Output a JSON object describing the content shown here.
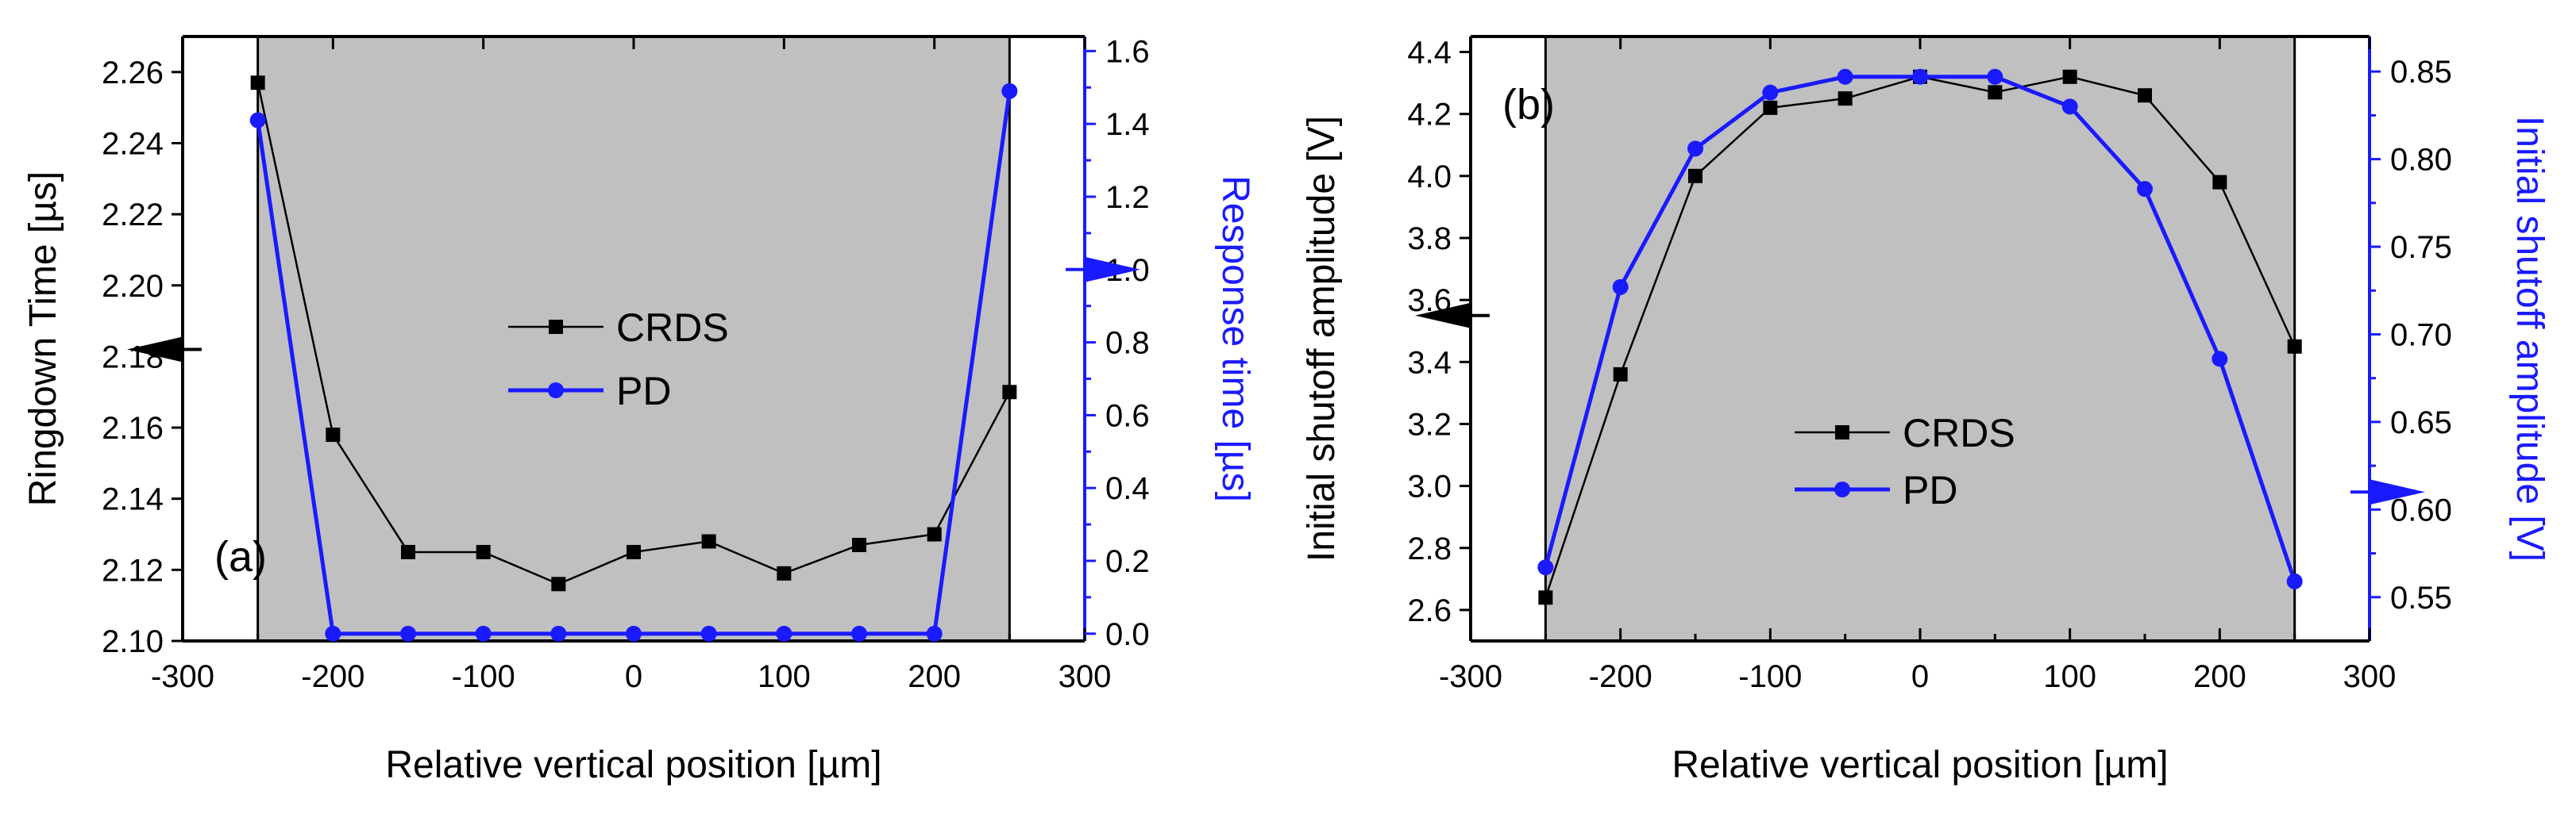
{
  "colors": {
    "shade": "#c0c0c0",
    "crds": "#000000",
    "pd": "#1a1aff",
    "axis_black": "#000000",
    "axis_blue": "#1a1aff"
  },
  "chart_data": [
    {
      "type": "line",
      "panel_label": "(a)",
      "xlabel": "Relative vertical position [µm]",
      "ylabel": "Ringdown Time [µs]",
      "y2label": "Response time [µs]",
      "xlim": [
        -300,
        300
      ],
      "ylim": [
        2.1,
        2.27
      ],
      "y2lim": [
        -0.02,
        1.64
      ],
      "xticks": [
        -300,
        -200,
        -100,
        0,
        100,
        200,
        300
      ],
      "xtick_labels": [
        "-300",
        "-200",
        "-100",
        "0",
        "100",
        "200",
        "300"
      ],
      "yticks": [
        2.1,
        2.12,
        2.14,
        2.16,
        2.18,
        2.2,
        2.22,
        2.24,
        2.26
      ],
      "ytick_labels": [
        "2.10",
        "2.12",
        "2.14",
        "2.16",
        "2.18",
        "2.20",
        "2.22",
        "2.24",
        "2.26"
      ],
      "y2ticks": [
        0.0,
        0.2,
        0.4,
        0.6,
        0.8,
        1.0,
        1.2,
        1.4,
        1.6
      ],
      "y2tick_labels": [
        "0.0",
        "0.2",
        "0.4",
        "0.6",
        "0.8",
        "1.0",
        "1.2",
        "1.4",
        "1.6"
      ],
      "shaded_region": [
        -250,
        250
      ],
      "x": [
        -250,
        -200,
        -150,
        -100,
        -50,
        0,
        50,
        100,
        150,
        200,
        250
      ],
      "series": [
        {
          "name": "CRDS",
          "axis": "left",
          "marker": "square",
          "values": [
            2.257,
            2.158,
            2.125,
            2.125,
            2.116,
            2.125,
            2.128,
            2.119,
            2.127,
            2.13,
            2.17
          ]
        },
        {
          "name": "PD",
          "axis": "right",
          "marker": "circle",
          "values": [
            1.41,
            0.0,
            0.0,
            0.0,
            0.0,
            0.0,
            0.0,
            0.0,
            0.0,
            0.0,
            1.49
          ]
        }
      ],
      "legend": [
        "CRDS",
        "PD"
      ],
      "legend_position": "center",
      "arrows": [
        {
          "points_to": "left",
          "at_y": 2.182
        },
        {
          "points_to": "right",
          "at_y2": 1.0
        }
      ]
    },
    {
      "type": "line",
      "panel_label": "(b)",
      "xlabel": "Relative vertical position [µm]",
      "ylabel": "Initial shutoff amplitude [V]",
      "y2label": "Initial shutoff amplitude [V]",
      "xlim": [
        -300,
        300
      ],
      "ylim": [
        2.5,
        4.45
      ],
      "y2lim": [
        0.525,
        0.87
      ],
      "xticks": [
        -300,
        -200,
        -100,
        0,
        100,
        200,
        300
      ],
      "xtick_labels": [
        "-300",
        "-200",
        "-100",
        "0",
        "100",
        "200",
        "300"
      ],
      "yticks": [
        2.6,
        2.8,
        3.0,
        3.2,
        3.4,
        3.6,
        3.8,
        4.0,
        4.2,
        4.4
      ],
      "ytick_labels": [
        "2.6",
        "2.8",
        "3.0",
        "3.2",
        "3.4",
        "3.6",
        "3.8",
        "4.0",
        "4.2",
        "4.4"
      ],
      "y2ticks": [
        0.55,
        0.6,
        0.65,
        0.7,
        0.75,
        0.8,
        0.85
      ],
      "y2tick_labels": [
        "0.55",
        "0.60",
        "0.65",
        "0.70",
        "0.75",
        "0.80",
        "0.85"
      ],
      "shaded_region": [
        -250,
        250
      ],
      "x": [
        -250,
        -200,
        -150,
        -100,
        -50,
        0,
        50,
        100,
        150,
        200,
        250
      ],
      "series": [
        {
          "name": "CRDS",
          "axis": "left",
          "marker": "square",
          "values": [
            2.64,
            3.36,
            4.0,
            4.22,
            4.25,
            4.32,
            4.27,
            4.32,
            4.26,
            3.98,
            3.45
          ]
        },
        {
          "name": "PD",
          "axis": "right",
          "marker": "circle",
          "values": [
            0.567,
            0.727,
            0.806,
            0.838,
            0.847,
            0.847,
            0.847,
            0.83,
            0.783,
            0.686,
            0.559
          ]
        }
      ],
      "legend": [
        "CRDS",
        "PD"
      ],
      "legend_position": "lower-center",
      "arrows": [
        {
          "points_to": "left",
          "at_y": 3.55
        },
        {
          "points_to": "right",
          "at_y2": 0.61
        }
      ]
    }
  ]
}
